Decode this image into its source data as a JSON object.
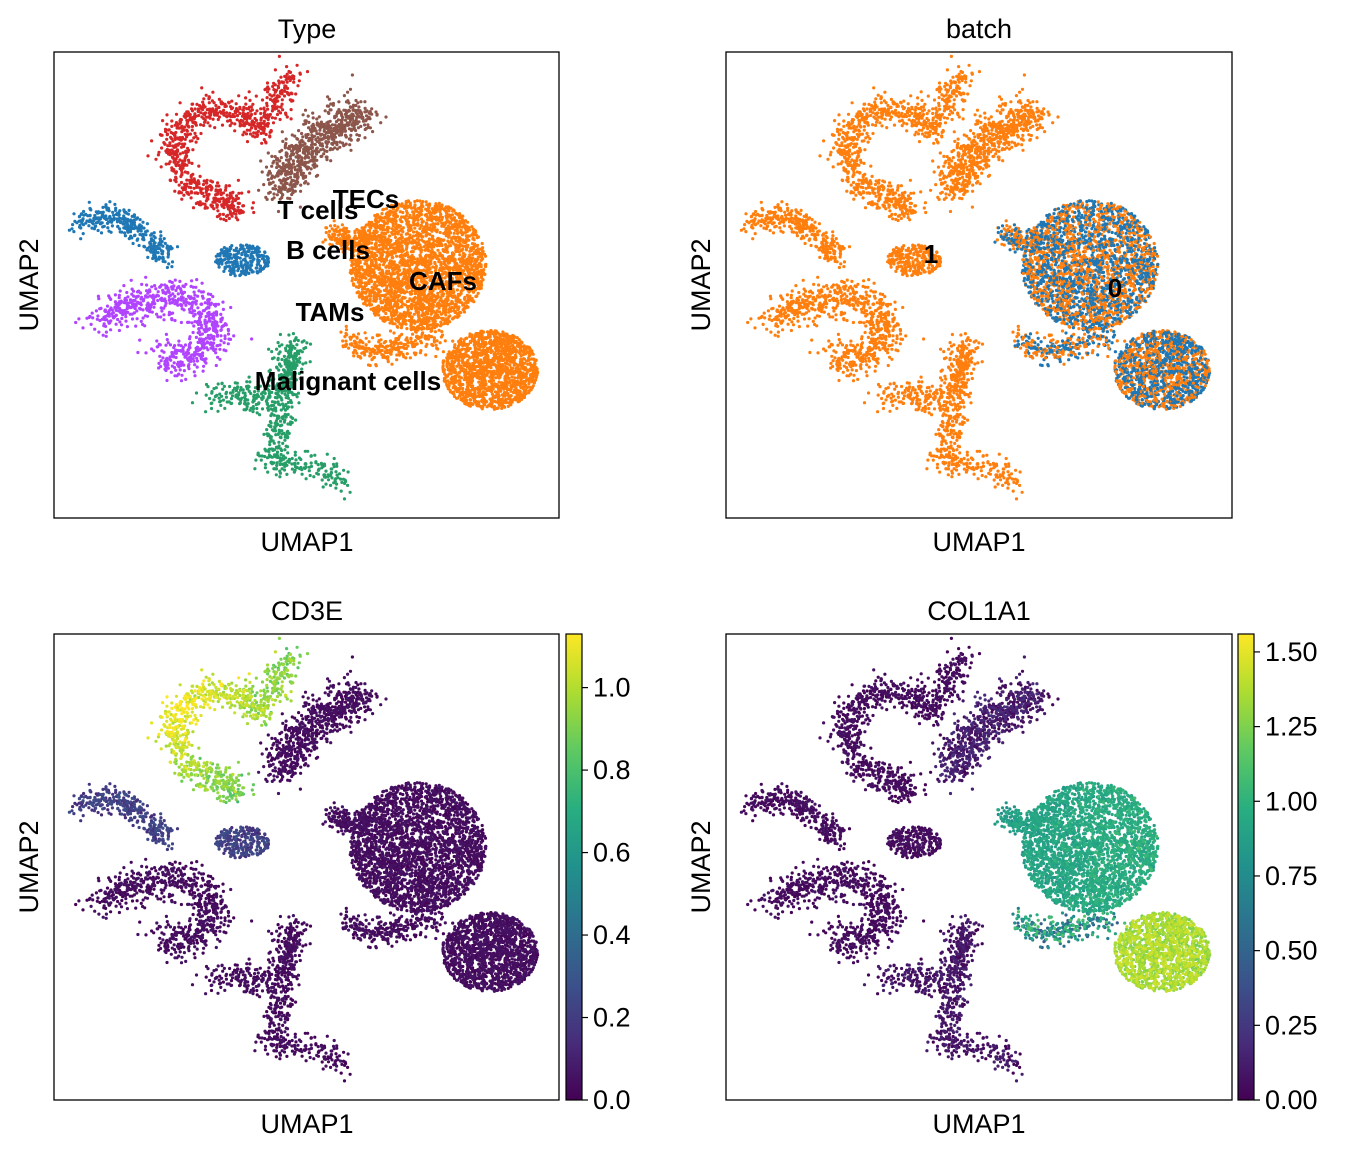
{
  "chart_data": [
    {
      "type": "scatter",
      "title": "Type",
      "xlabel": "UMAP1",
      "ylabel": "UMAP2",
      "color_by": "categorical",
      "labels_on_data": [
        "TECs",
        "T cells",
        "B cells",
        "CAFs",
        "TAMs",
        "Malignant cells"
      ],
      "category_colors": {
        "T cells": "#d62728",
        "TECs": "#8c564b",
        "B cells": "#1f77b4",
        "CAFs": "#ff7f0e",
        "TAMs": "#b044ff",
        "Malignant cells": "#279e68"
      }
    },
    {
      "type": "scatter",
      "title": "batch",
      "xlabel": "UMAP1",
      "ylabel": "UMAP2",
      "color_by": "categorical",
      "labels_on_data": [
        "1",
        "0"
      ],
      "category_colors": {
        "0": "#1f77b4",
        "1": "#ff7f0e"
      }
    },
    {
      "type": "scatter",
      "title": "CD3E",
      "xlabel": "UMAP1",
      "ylabel": "UMAP2",
      "color_by": "continuous",
      "colormap": "viridis",
      "colorbar_range": [
        0,
        1.13
      ],
      "colorbar_ticks": [
        "0.0",
        "0.2",
        "0.4",
        "0.6",
        "0.8",
        "1.0"
      ],
      "colorbar_tick_values": [
        0,
        0.2,
        0.4,
        0.6,
        0.8,
        1.0
      ]
    },
    {
      "type": "scatter",
      "title": "COL1A1",
      "xlabel": "UMAP1",
      "ylabel": "UMAP2",
      "color_by": "continuous",
      "colormap": "viridis",
      "colorbar_range": [
        0,
        1.56
      ],
      "colorbar_ticks": [
        "0.00",
        "0.25",
        "0.50",
        "0.75",
        "1.00",
        "1.25",
        "1.50"
      ],
      "colorbar_tick_values": [
        0,
        0.25,
        0.5,
        0.75,
        1.0,
        1.25,
        1.5
      ]
    }
  ]
}
